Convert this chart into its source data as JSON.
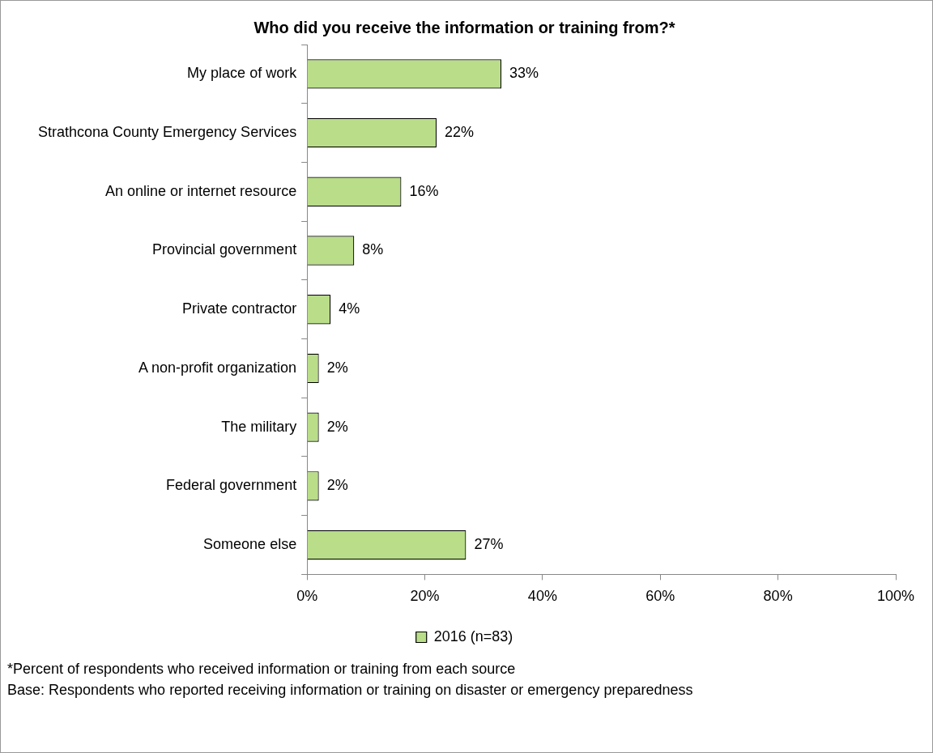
{
  "chart_data": {
    "type": "bar",
    "orientation": "horizontal",
    "title": "Who did you receive the information or training from?*",
    "categories": [
      "My place of work",
      "Strathcona County Emergency Services",
      "An online or internet resource",
      "Provincial government",
      "Private contractor",
      "A non-profit organization",
      "The military",
      "Federal government",
      "Someone else"
    ],
    "series": [
      {
        "name": "2016 (n=83)",
        "color": "#b9dd89",
        "values": [
          33,
          22,
          16,
          8,
          4,
          2,
          2,
          2,
          27
        ],
        "value_labels": [
          "33%",
          "22%",
          "16%",
          "8%",
          "4%",
          "2%",
          "2%",
          "2%",
          "27%"
        ]
      }
    ],
    "xlim": [
      0,
      100
    ],
    "xticks": [
      {
        "value": 0,
        "label": "0%"
      },
      {
        "value": 20,
        "label": "20%"
      },
      {
        "value": 40,
        "label": "40%"
      },
      {
        "value": 60,
        "label": "60%"
      },
      {
        "value": 80,
        "label": "80%"
      },
      {
        "value": 100,
        "label": "100%"
      }
    ],
    "grid": false,
    "legend": "bottom",
    "annotations": [
      "*Percent of respondents who received information or training from each source",
      "Base: Respondents who reported receiving information or training on disaster or emergency preparedness"
    ]
  }
}
